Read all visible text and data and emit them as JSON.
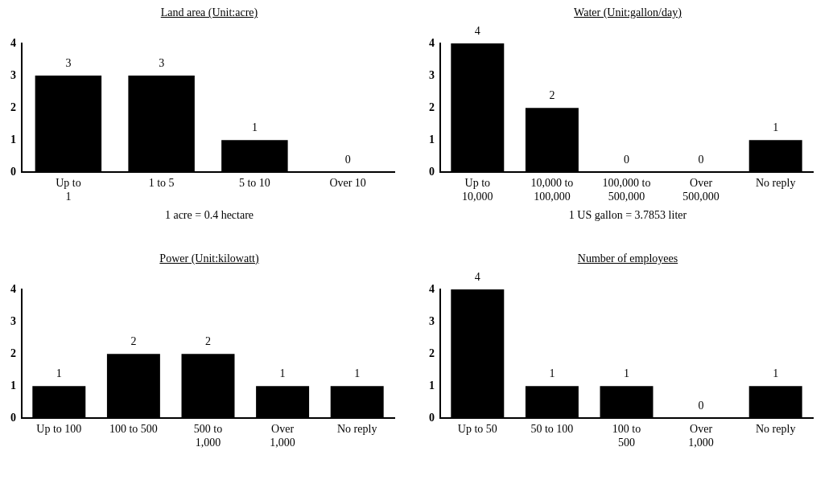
{
  "chart_data": [
    {
      "type": "bar",
      "title": "Land area (Unit:acre)",
      "categories": [
        "Up to\n1",
        "1 to 5",
        "5 to 10",
        "Over 10"
      ],
      "values": [
        3,
        3,
        1,
        0
      ],
      "color": "#000000",
      "ylim": [
        0,
        4
      ],
      "yticks": [
        0,
        1,
        2,
        3,
        4
      ],
      "grid": false,
      "legend": false,
      "data_labels": true,
      "annotations": [
        "1 acre = 0.4 hectare"
      ]
    },
    {
      "type": "bar",
      "title": "Water (Unit:gallon/day)",
      "categories": [
        "Up to\n10,000",
        "10,000 to\n100,000",
        "100,000 to\n500,000",
        "Over\n500,000",
        "No reply"
      ],
      "values": [
        4,
        2,
        0,
        0,
        1
      ],
      "color": "#000000",
      "ylim": [
        0,
        4
      ],
      "yticks": [
        0,
        1,
        2,
        3,
        4
      ],
      "grid": false,
      "legend": false,
      "data_labels": true,
      "annotations": [
        "1 US gallon = 3.7853 liter"
      ]
    },
    {
      "type": "bar",
      "title": "Power (Unit:kilowatt)",
      "categories": [
        "Up to 100",
        "100 to 500",
        "500 to\n1,000",
        "Over\n1,000",
        "No reply"
      ],
      "values": [
        1,
        2,
        2,
        1,
        1
      ],
      "color": "#000000",
      "ylim": [
        0,
        4
      ],
      "yticks": [
        0,
        1,
        2,
        3,
        4
      ],
      "grid": false,
      "legend": false,
      "data_labels": true
    },
    {
      "type": "bar",
      "title": "Number of employees",
      "categories": [
        "Up to 50",
        "50 to 100",
        "100 to\n500",
        "Over\n1,000",
        "No reply"
      ],
      "values": [
        4,
        1,
        1,
        0,
        1
      ],
      "color": "#000000",
      "ylim": [
        0,
        4
      ],
      "yticks": [
        0,
        1,
        2,
        3,
        4
      ],
      "grid": false,
      "legend": false,
      "data_labels": true
    }
  ]
}
